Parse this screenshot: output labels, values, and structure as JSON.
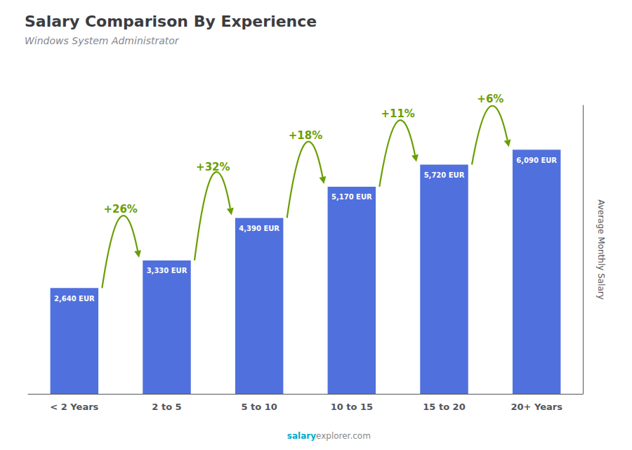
{
  "chart_data": {
    "type": "bar",
    "title": "Salary Comparison By Experience",
    "subtitle": "Windows System Administrator",
    "ylabel": "Average Monthly Salary",
    "categories": [
      "< 2 Years",
      "2 to 5",
      "5 to 10",
      "10 to 15",
      "15 to 20",
      "20+ Years"
    ],
    "values": [
      2640,
      3330,
      4390,
      5170,
      5720,
      6090
    ],
    "value_labels": [
      "2,640 EUR",
      "3,330 EUR",
      "4,390 EUR",
      "5,170 EUR",
      "5,720 EUR",
      "6,090 EUR"
    ],
    "data_labels": true,
    "annotations": [
      "+26%",
      "+32%",
      "+18%",
      "+11%",
      "+6%"
    ],
    "source_note": [
      "salary",
      "explorer.com"
    ],
    "ylim": [
      0,
      7200
    ],
    "tick_labels": "x",
    "grid": false
  }
}
